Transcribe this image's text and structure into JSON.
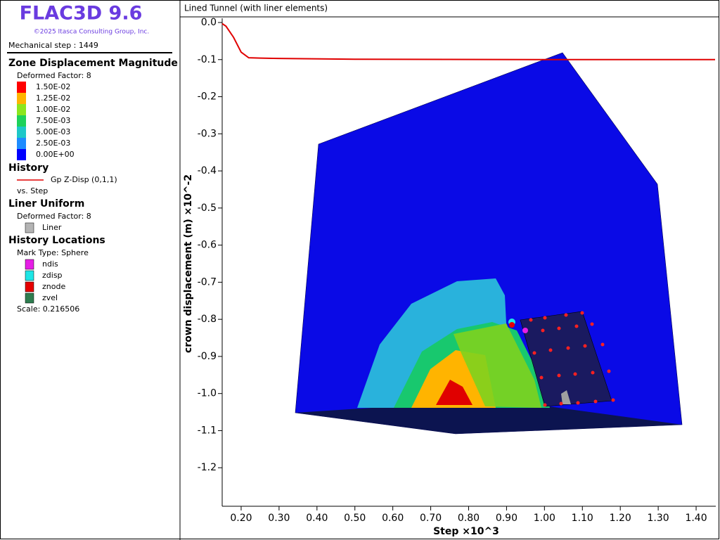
{
  "app_title": "FLAC3D 9.6",
  "copyright": "©2025 Itasca Consulting Group, Inc.",
  "step_label": "Mechanical step : 1449",
  "zone_legend": {
    "heading": "Zone Displacement Magnitude",
    "note": "Deformed Factor: 8",
    "items": [
      {
        "label": "1.50E-02",
        "color": "#ff0000"
      },
      {
        "label": "1.25E-02",
        "color": "#ffb400"
      },
      {
        "label": "1.00E-02",
        "color": "#8ce61e"
      },
      {
        "label": "7.50E-03",
        "color": "#1ed25a"
      },
      {
        "label": "5.00E-03",
        "color": "#1ec8c8"
      },
      {
        "label": "2.50E-03",
        "color": "#1e8cff"
      },
      {
        "label": "0.00E+00",
        "color": "#0000ff"
      }
    ]
  },
  "history_legend": {
    "heading": "History",
    "note": "vs. Step"
  },
  "liner_legend": {
    "heading": "Liner Uniform",
    "note": "Deformed Factor: 8",
    "items": [
      {
        "label": "Liner",
        "color": "#b4b4b4"
      }
    ]
  },
  "locations_legend": {
    "heading": "History Locations",
    "note": "Mark Type: Sphere",
    "items": [
      {
        "label": "ndis",
        "color": "#e61ee6"
      },
      {
        "label": "zdisp",
        "color": "#1ee6e6"
      },
      {
        "label": "znode",
        "color": "#e60000"
      },
      {
        "label": "zvel",
        "color": "#2e7d4f"
      }
    ],
    "footer": "Scale: 0.216506"
  },
  "chart_data": {
    "type": "line",
    "title": "Lined Tunnel (with liner elements)",
    "x_label": "Step ×10^3",
    "y_label": "crown displacement (m) ×10^-2",
    "xlim": [
      0.15,
      1.45
    ],
    "ylim": [
      -1.3,
      0.0
    ],
    "xticks": [
      {
        "value": 0.2,
        "label": "0.20"
      },
      {
        "value": 0.3,
        "label": "0.30"
      },
      {
        "value": 0.4,
        "label": "0.40"
      },
      {
        "value": 0.5,
        "label": "0.50"
      },
      {
        "value": 0.6,
        "label": "0.60"
      },
      {
        "value": 0.7,
        "label": "0.70"
      },
      {
        "value": 0.8,
        "label": "0.80"
      },
      {
        "value": 0.9,
        "label": "0.90"
      },
      {
        "value": 1.0,
        "label": "1.00"
      },
      {
        "value": 1.1,
        "label": "1.10"
      },
      {
        "value": 1.2,
        "label": "1.20"
      },
      {
        "value": 1.3,
        "label": "1.30"
      },
      {
        "value": 1.4,
        "label": "1.40"
      }
    ],
    "yticks": [
      {
        "value": 0,
        "label": "0.0"
      },
      -0.1,
      -0.2,
      -0.3,
      -0.4,
      -0.5,
      -0.6,
      -0.7,
      -0.8,
      -0.9,
      {
        "value": -1.0,
        "label": "-1.0"
      },
      -1.1,
      -1.2
    ],
    "series": [
      {
        "name": "Gp Z-Disp (0,1,1)",
        "color": "#e00000",
        "x": [
          0.15,
          0.16,
          0.18,
          0.2,
          0.22,
          0.25,
          0.3,
          0.5,
          1.0,
          1.45
        ],
        "values": [
          -0.003,
          -0.01,
          -0.04,
          -0.08,
          -0.095,
          -0.096,
          -0.097,
          -0.099,
          -0.1,
          -0.1
        ]
      }
    ]
  }
}
